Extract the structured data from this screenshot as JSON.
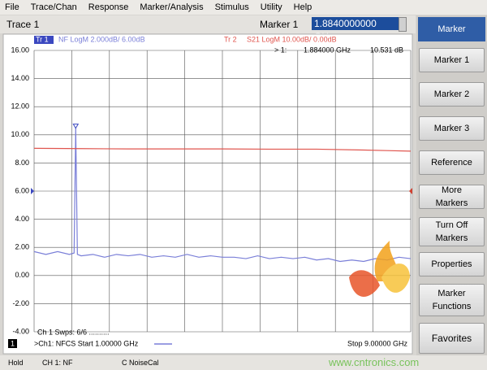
{
  "menu": [
    "File",
    "Trace/Chan",
    "Response",
    "Marker/Analysis",
    "Stimulus",
    "Utility",
    "Help"
  ],
  "toolbar": {
    "trace": "Trace 1",
    "marker_label": "Marker 1",
    "marker_value": "1.8840000000 GHz"
  },
  "softkeys": {
    "title": "Marker",
    "buttons": [
      "Marker 1",
      "Marker 2",
      "Marker 3",
      "Reference",
      "More Markers",
      "Turn Off Markers",
      "Properties",
      "Marker Functions",
      "Favorites"
    ]
  },
  "chart_data": {
    "type": "line",
    "xlim": [
      1,
      9
    ],
    "xticks": [
      1,
      1.8,
      2.6,
      3.4,
      4.2,
      5,
      5.8,
      6.6,
      7.4,
      8.2,
      9
    ],
    "ylim": [
      -4,
      16
    ],
    "yticks": [
      {
        "value": 16,
        "label": "16.00"
      },
      {
        "value": 14,
        "label": "14.00"
      },
      {
        "value": 12,
        "label": "12.00"
      },
      {
        "value": 10,
        "label": "10.00"
      },
      {
        "value": 8,
        "label": "8.00"
      },
      {
        "value": 6,
        "label": "6.00"
      },
      {
        "value": 4,
        "label": "4.00"
      },
      {
        "value": 2,
        "label": "2.00"
      },
      {
        "value": 0,
        "label": "0.00"
      },
      {
        "value": -2,
        "label": "-2.00"
      },
      {
        "value": -4,
        "label": "-4.00"
      }
    ],
    "y2lim": [
      -50,
      50
    ],
    "grid": true,
    "series": [
      {
        "name": "Tr 1",
        "label": "NF LogM 2.000dB/ 6.00dB",
        "color": "#7a7fd8",
        "x": [
          1,
          1.25,
          1.5,
          1.75,
          1.85,
          1.884,
          1.92,
          2,
          2.25,
          2.5,
          2.75,
          3,
          3.25,
          3.5,
          3.75,
          4,
          4.25,
          4.5,
          4.75,
          5,
          5.25,
          5.5,
          5.75,
          6,
          6.25,
          6.5,
          6.75,
          7,
          7.25,
          7.5,
          7.75,
          8,
          8.25,
          8.5,
          8.75,
          9
        ],
        "values": [
          1.7,
          1.5,
          1.7,
          1.5,
          1.6,
          10.531,
          1.5,
          1.4,
          1.5,
          1.3,
          1.5,
          1.4,
          1.5,
          1.3,
          1.4,
          1.3,
          1.5,
          1.3,
          1.4,
          1.3,
          1.3,
          1.2,
          1.4,
          1.2,
          1.3,
          1.2,
          1.3,
          1.1,
          1.2,
          1.0,
          1.1,
          1.0,
          1.2,
          1.1,
          1.3,
          1.2
        ]
      },
      {
        "name": "Tr 2",
        "label": "S21 LogM 10.00dB/ 0.00dB",
        "color": "#e0554e",
        "axis": "y2",
        "x": [
          1,
          2,
          3,
          4,
          5,
          6,
          7,
          8,
          8.5,
          9
        ],
        "values": [
          15.2,
          15.1,
          15,
          15,
          15,
          14.9,
          14.9,
          14.6,
          14.4,
          14.2
        ]
      }
    ],
    "marker": {
      "x": 1.884,
      "value": 10.531,
      "label": "> 1:",
      "x_label": "1.884000 GHz",
      "value_label": "10.531 dB"
    },
    "sweeps": "Ch 1  Swps: 6/6 ..........",
    "channel": "1",
    "start_label": ">Ch1: NFCS  Start  1.00000 GHz",
    "stop_label": "Stop  9.00000 GHz"
  },
  "status": [
    "Hold",
    "CH 1: NF",
    "C NoiseCal"
  ],
  "watermark": "www.cntronics.com"
}
